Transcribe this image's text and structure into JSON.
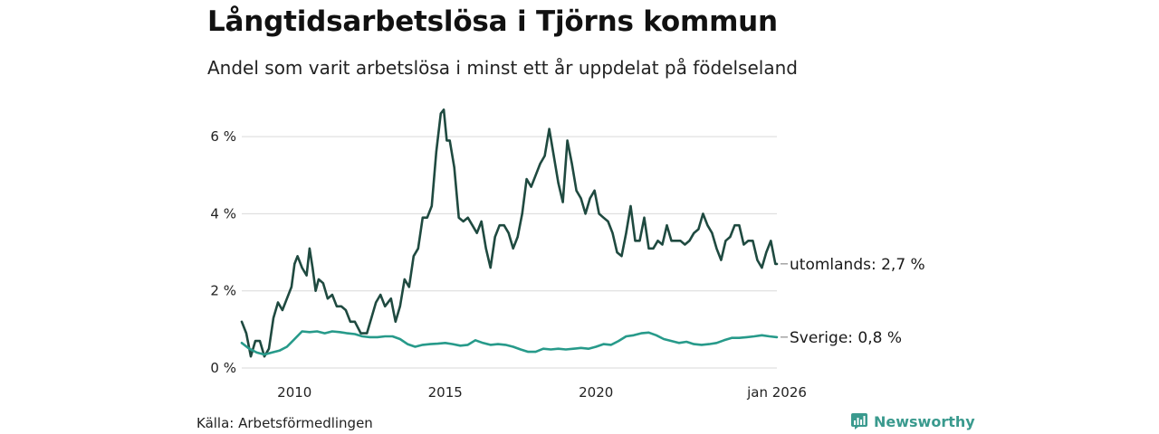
{
  "header": {
    "title": "Långtidsarbetslösa i Tjörns kommun",
    "subtitle": "Andel som varit arbetslösa i minst ett år uppdelat på födelseland"
  },
  "footer": {
    "source": "Källa: Arbetsförmedlingen",
    "brand": "Newsworthy"
  },
  "colors": {
    "utomlands": "#1f4a40",
    "sverige": "#279a8a",
    "grid": "#d9d9d9",
    "brand": "#3a9a8e"
  },
  "chart_data": {
    "type": "line",
    "title": "Långtidsarbetslösa i Tjörns kommun",
    "subtitle": "Andel som varit arbetslösa i minst ett år uppdelat på födelseland",
    "xlabel": "",
    "ylabel": "",
    "x_range": [
      2008.25,
      2026.0
    ],
    "ylim": [
      0,
      6.8
    ],
    "y_ticks": [
      0,
      2,
      4,
      6
    ],
    "y_tick_labels": [
      "0 %",
      "2 %",
      "4 %",
      "6 %"
    ],
    "x_ticks": [
      2010,
      2015,
      2020,
      2026.0
    ],
    "x_tick_labels": [
      "2010",
      "2015",
      "2020",
      "jan 2026"
    ],
    "grid": true,
    "series": [
      {
        "name": "utomlands",
        "label": "utomlands: 2,7 %",
        "color": "#1f4a40",
        "x": [
          2008.25,
          2008.4,
          2008.55,
          2008.7,
          2008.85,
          2009.0,
          2009.15,
          2009.3,
          2009.45,
          2009.6,
          2009.75,
          2009.9,
          2010.0,
          2010.1,
          2010.25,
          2010.4,
          2010.5,
          2010.6,
          2010.7,
          2010.8,
          2010.95,
          2011.1,
          2011.25,
          2011.4,
          2011.55,
          2011.7,
          2011.85,
          2012.0,
          2012.2,
          2012.4,
          2012.55,
          2012.7,
          2012.85,
          2013.0,
          2013.2,
          2013.35,
          2013.5,
          2013.65,
          2013.8,
          2013.95,
          2014.1,
          2014.25,
          2014.4,
          2014.55,
          2014.7,
          2014.85,
          2014.95,
          2015.05,
          2015.15,
          2015.3,
          2015.45,
          2015.6,
          2015.75,
          2015.9,
          2016.05,
          2016.2,
          2016.35,
          2016.5,
          2016.65,
          2016.8,
          2016.95,
          2017.1,
          2017.25,
          2017.4,
          2017.55,
          2017.7,
          2017.85,
          2018.0,
          2018.15,
          2018.3,
          2018.45,
          2018.6,
          2018.75,
          2018.9,
          2019.05,
          2019.2,
          2019.35,
          2019.5,
          2019.65,
          2019.8,
          2019.95,
          2020.1,
          2020.25,
          2020.4,
          2020.55,
          2020.7,
          2020.85,
          2021.0,
          2021.15,
          2021.3,
          2021.45,
          2021.6,
          2021.75,
          2021.9,
          2022.05,
          2022.2,
          2022.35,
          2022.5,
          2022.65,
          2022.8,
          2022.95,
          2023.1,
          2023.25,
          2023.4,
          2023.55,
          2023.7,
          2023.85,
          2024.0,
          2024.15,
          2024.3,
          2024.45,
          2024.6,
          2024.75,
          2024.9,
          2025.05,
          2025.2,
          2025.35,
          2025.5,
          2025.65,
          2025.8,
          2025.95,
          2026.0
        ],
        "values": [
          1.2,
          0.9,
          0.3,
          0.7,
          0.7,
          0.3,
          0.5,
          1.3,
          1.7,
          1.5,
          1.8,
          2.1,
          2.7,
          2.9,
          2.6,
          2.4,
          3.1,
          2.6,
          2.0,
          2.3,
          2.2,
          1.8,
          1.9,
          1.6,
          1.6,
          1.5,
          1.2,
          1.2,
          0.9,
          0.9,
          1.3,
          1.7,
          1.9,
          1.6,
          1.8,
          1.2,
          1.6,
          2.3,
          2.1,
          2.9,
          3.1,
          3.9,
          3.9,
          4.2,
          5.6,
          6.6,
          6.7,
          5.9,
          5.9,
          5.2,
          3.9,
          3.8,
          3.9,
          3.7,
          3.5,
          3.8,
          3.1,
          2.6,
          3.4,
          3.7,
          3.7,
          3.5,
          3.1,
          3.4,
          4.0,
          4.9,
          4.7,
          5.0,
          5.3,
          5.5,
          6.2,
          5.5,
          4.8,
          4.3,
          5.9,
          5.3,
          4.6,
          4.4,
          4.0,
          4.4,
          4.6,
          4.0,
          3.9,
          3.8,
          3.5,
          3.0,
          2.9,
          3.5,
          4.2,
          3.3,
          3.3,
          3.9,
          3.1,
          3.1,
          3.3,
          3.2,
          3.7,
          3.3,
          3.3,
          3.3,
          3.2,
          3.3,
          3.5,
          3.6,
          4.0,
          3.7,
          3.5,
          3.1,
          2.8,
          3.3,
          3.4,
          3.7,
          3.7,
          3.2,
          3.3,
          3.3,
          2.8,
          2.6,
          3.0,
          3.3,
          2.7,
          2.7
        ]
      },
      {
        "name": "Sverige",
        "label": "Sverige: 0,8 %",
        "color": "#279a8a",
        "x": [
          2008.25,
          2008.5,
          2008.75,
          2009.0,
          2009.25,
          2009.5,
          2009.75,
          2010.0,
          2010.25,
          2010.5,
          2010.75,
          2011.0,
          2011.25,
          2011.5,
          2011.75,
          2012.0,
          2012.25,
          2012.5,
          2012.75,
          2013.0,
          2013.25,
          2013.5,
          2013.75,
          2014.0,
          2014.25,
          2014.5,
          2014.75,
          2015.0,
          2015.25,
          2015.5,
          2015.75,
          2016.0,
          2016.25,
          2016.5,
          2016.75,
          2017.0,
          2017.25,
          2017.5,
          2017.75,
          2018.0,
          2018.25,
          2018.5,
          2018.75,
          2019.0,
          2019.25,
          2019.5,
          2019.75,
          2020.0,
          2020.25,
          2020.5,
          2020.75,
          2021.0,
          2021.25,
          2021.5,
          2021.75,
          2022.0,
          2022.25,
          2022.5,
          2022.75,
          2023.0,
          2023.25,
          2023.5,
          2023.75,
          2024.0,
          2024.25,
          2024.5,
          2024.75,
          2025.0,
          2025.25,
          2025.5,
          2025.75,
          2026.0
        ],
        "values": [
          0.65,
          0.5,
          0.4,
          0.35,
          0.4,
          0.45,
          0.55,
          0.75,
          0.95,
          0.93,
          0.95,
          0.9,
          0.95,
          0.93,
          0.9,
          0.88,
          0.82,
          0.8,
          0.8,
          0.82,
          0.82,
          0.75,
          0.62,
          0.55,
          0.6,
          0.62,
          0.63,
          0.65,
          0.62,
          0.58,
          0.6,
          0.72,
          0.65,
          0.6,
          0.62,
          0.6,
          0.55,
          0.48,
          0.42,
          0.42,
          0.5,
          0.48,
          0.5,
          0.48,
          0.5,
          0.52,
          0.5,
          0.55,
          0.62,
          0.6,
          0.7,
          0.82,
          0.85,
          0.9,
          0.92,
          0.85,
          0.75,
          0.7,
          0.65,
          0.68,
          0.62,
          0.6,
          0.62,
          0.65,
          0.72,
          0.78,
          0.78,
          0.8,
          0.82,
          0.85,
          0.82,
          0.8
        ]
      }
    ]
  }
}
